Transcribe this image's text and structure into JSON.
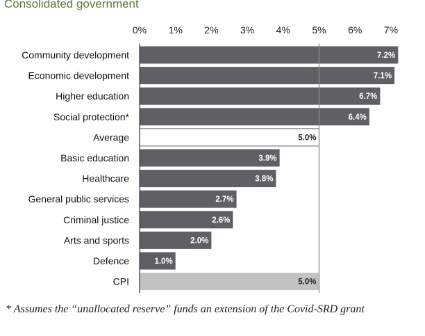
{
  "chart_data": {
    "type": "bar",
    "orientation": "horizontal",
    "title": "Consolidated government",
    "xlim": [
      0,
      7
    ],
    "xticks": [
      "0%",
      "1%",
      "2%",
      "3%",
      "4%",
      "5%",
      "6%",
      "7%"
    ],
    "reference_line": 5.0,
    "categories": [
      "Community development",
      "Economic development",
      "Higher education",
      "Social protection*",
      "Average",
      "Basic education",
      "Healthcare",
      "General public services",
      "Criminal justice",
      "Arts and sports",
      "Defence",
      "CPI"
    ],
    "values": [
      7.2,
      7.1,
      6.7,
      6.4,
      5.0,
      3.9,
      3.8,
      2.7,
      2.6,
      2.0,
      1.0,
      5.0
    ],
    "value_labels": [
      "7.2%",
      "7.1%",
      "6.7%",
      "6.4%",
      "5.0%",
      "3.9%",
      "3.8%",
      "2.7%",
      "2.6%",
      "2.0%",
      "1.0%",
      "5.0%"
    ],
    "bar_styles": [
      "dark",
      "dark",
      "dark",
      "dark",
      "outline",
      "dark",
      "dark",
      "dark",
      "dark",
      "dark",
      "dark",
      "light"
    ],
    "colors": {
      "dark": "#5f6066",
      "light": "#c2c2c2",
      "outline_fill": "#ffffff",
      "outline_stroke": "#5f6066",
      "reference_line": "#8a8a8a",
      "title": "#5a7a3a"
    }
  },
  "footnote": "* Assumes the “unallocated reserve” funds an extension of the Covid-SRD grant"
}
